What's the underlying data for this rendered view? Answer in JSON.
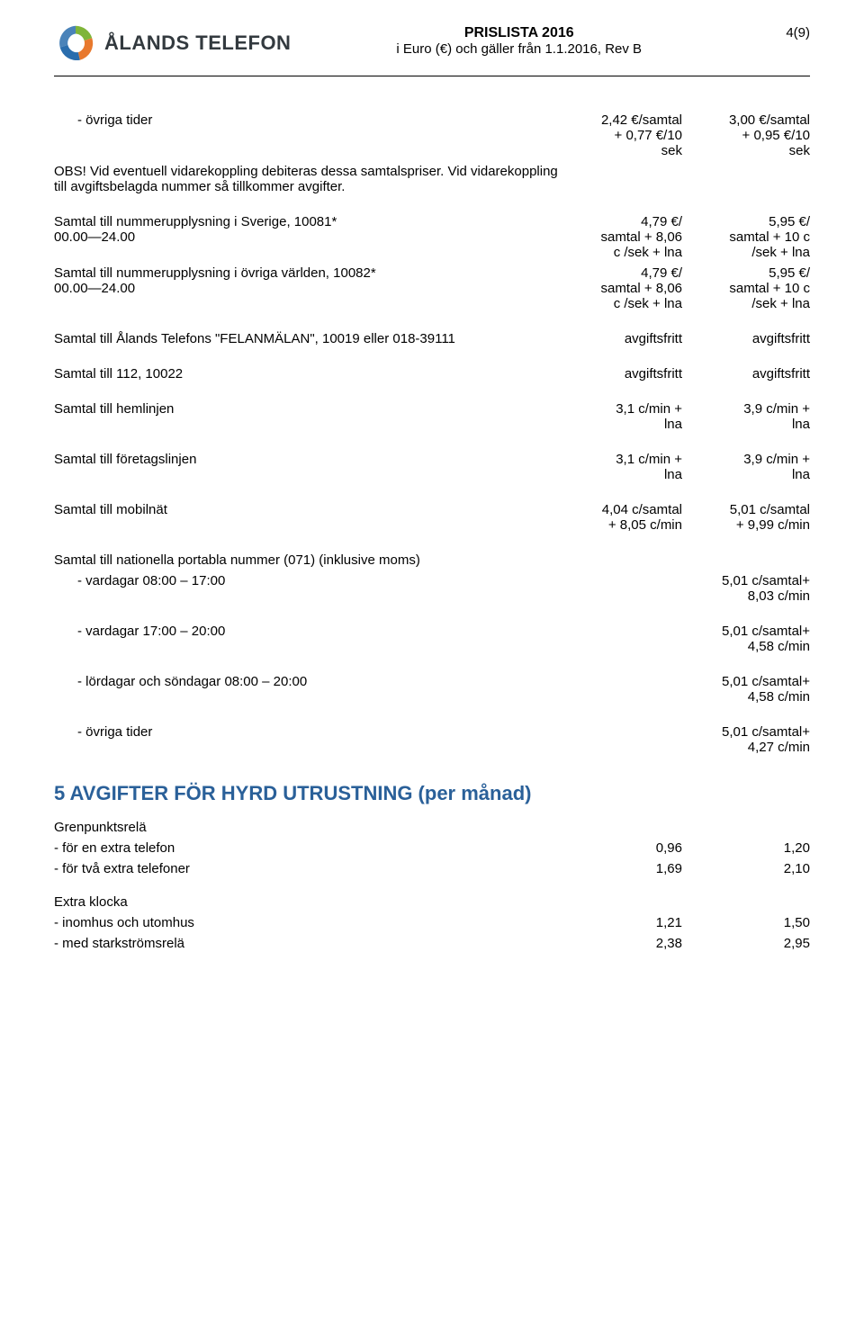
{
  "header": {
    "brand": "ÅLANDS TELEFON",
    "title": "PRISLISTA 2016",
    "subtitle": "i Euro (€) och gäller från 1.1.2016, Rev B",
    "page": "4(9)"
  },
  "rows": [
    {
      "label": "övriga tider",
      "indent": true,
      "c1": "2,42 €/samtal\n+ 0,77 €/10\nsek",
      "c2": "3,00 €/samtal\n+ 0,95 €/10\nsek"
    },
    {
      "label": "OBS! Vid eventuell vidarekoppling debiteras dessa samtalspriser. Vid vidarekoppling till avgiftsbelagda nummer så tillkommer avgifter.",
      "c1": "",
      "c2": "",
      "gapAfter": true
    },
    {
      "label": "Samtal till nummerupplysning i Sverige, 10081*\n00.00—24.00",
      "c1": "4,79 €/\nsamtal + 8,06\nc /sek + lna",
      "c2": "5,95 €/\nsamtal + 10 c\n/sek + lna"
    },
    {
      "label": "Samtal till nummerupplysning i övriga världen, 10082*\n00.00—24.00",
      "c1": "4,79 €/\nsamtal + 8,06\nc /sek + lna",
      "c2": "5,95 €/\nsamtal + 10 c\n/sek + lna",
      "gapAfter": true
    },
    {
      "label": "Samtal till Ålands Telefons \"FELANMÄLAN\", 10019 eller 018-39111",
      "c1": "avgiftsfritt",
      "c2": "avgiftsfritt",
      "gapAfter": true
    },
    {
      "label": "Samtal till 112, 10022",
      "c1": "avgiftsfritt",
      "c2": "avgiftsfritt",
      "gapAfter": true
    },
    {
      "label": "Samtal till hemlinjen",
      "c1": "3,1 c/min +\nlna",
      "c2": "3,9 c/min +\nlna",
      "gapAfter": true
    },
    {
      "label": "Samtal till företagslinjen",
      "c1": "3,1 c/min +\nlna",
      "c2": "3,9 c/min +\nlna",
      "gapAfter": true
    },
    {
      "label": "Samtal till mobilnät",
      "c1": "4,04 c/samtal\n+ 8,05 c/min",
      "c2": "5,01 c/samtal\n+ 9,99 c/min",
      "gapAfter": true
    },
    {
      "label": "Samtal till nationella portabla nummer (071) (inklusive moms)",
      "c1": "",
      "c2": ""
    },
    {
      "label": "vardagar 08:00 – 17:00",
      "indent": true,
      "c1": "",
      "c2": "5,01 c/samtal+\n8,03 c/min",
      "gapAfter": true
    },
    {
      "label": "vardagar 17:00 – 20:00",
      "indent": true,
      "c1": "",
      "c2": "5,01 c/samtal+\n4,58 c/min",
      "gapAfter": true
    },
    {
      "label": "lördagar och söndagar 08:00 – 20:00",
      "indent": true,
      "c1": "",
      "c2": "5,01 c/samtal+\n4,58 c/min",
      "gapAfter": true
    },
    {
      "label": "övriga tider",
      "indent": true,
      "c1": "",
      "c2": "5,01 c/samtal+\n4,27 c/min",
      "gapAfter": true
    }
  ],
  "section5": {
    "heading": "5 AVGIFTER FÖR HYRD UTRUSTNING (per månad)",
    "groups": [
      {
        "title": "Grenpunktsrelä",
        "items": [
          {
            "label": "- för en extra telefon",
            "c1": "0,96",
            "c2": "1,20"
          },
          {
            "label": "- för två extra telefoner",
            "c1": "1,69",
            "c2": "2,10"
          }
        ]
      },
      {
        "title": "Extra klocka",
        "items": [
          {
            "label": "- inomhus och utomhus",
            "c1": "1,21",
            "c2": "1,50"
          },
          {
            "label": "- med starkströmsrelä",
            "c1": "2,38",
            "c2": "2,95"
          }
        ]
      }
    ]
  },
  "style": {
    "accent": "#2a6099",
    "logo_colors": {
      "green": "#7fb539",
      "orange": "#e8792e",
      "blue": "#2a6dad"
    }
  }
}
